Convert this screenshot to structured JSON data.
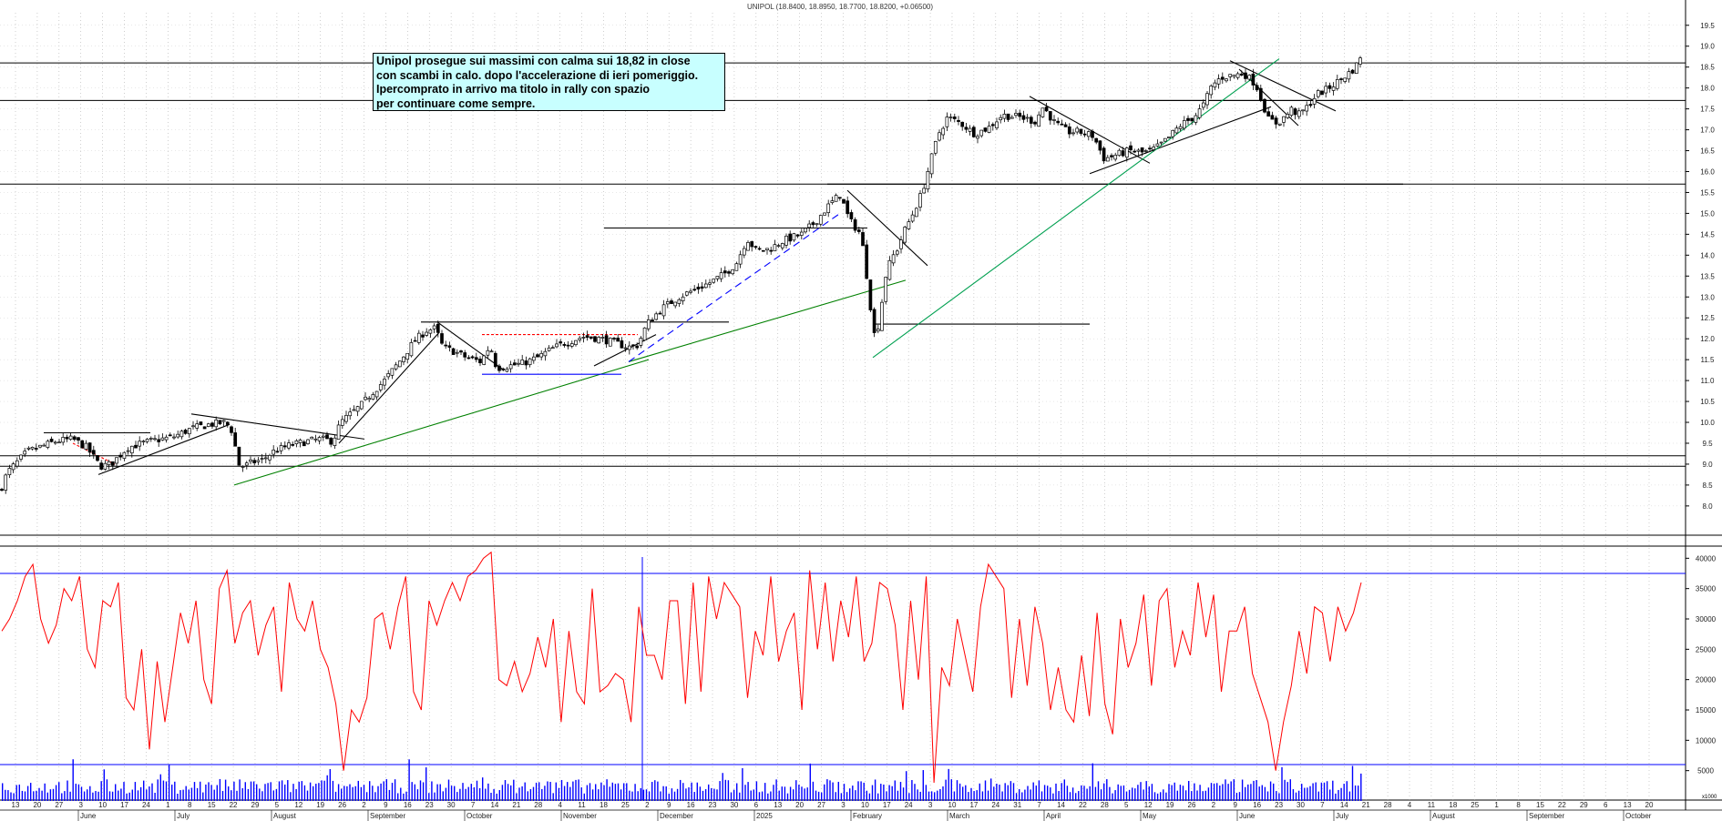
{
  "chart_data": [
    {
      "type": "candlestick",
      "title": "UNIPOL (18.8400, 18.8950, 18.7700, 18.8200, +0.06500)",
      "ylim": [
        7.3,
        19.8
      ],
      "y_ticks": [
        "8.0",
        "8.5",
        "9.0",
        "9.5",
        "10.0",
        "10.5",
        "11.0",
        "11.5",
        "12.0",
        "12.5",
        "13.0",
        "13.5",
        "14.0",
        "14.5",
        "15.0",
        "15.5",
        "16.0",
        "16.5",
        "17.0",
        "17.5",
        "18.0",
        "18.5",
        "19.0",
        "19.5"
      ],
      "price_path": [
        [
          0,
          8.35
        ],
        [
          8,
          8.8
        ],
        [
          30,
          9.3
        ],
        [
          62,
          9.55
        ],
        [
          80,
          9.6
        ],
        [
          95,
          9.4
        ],
        [
          110,
          8.95
        ],
        [
          122,
          9.0
        ],
        [
          140,
          9.4
        ],
        [
          165,
          9.55
        ],
        [
          190,
          9.65
        ],
        [
          210,
          9.85
        ],
        [
          230,
          9.95
        ],
        [
          248,
          10.0
        ],
        [
          256,
          9.75
        ],
        [
          261,
          9.0
        ],
        [
          268,
          8.95
        ],
        [
          278,
          9.05
        ],
        [
          288,
          9.1
        ],
        [
          300,
          9.3
        ],
        [
          318,
          9.45
        ],
        [
          338,
          9.55
        ],
        [
          352,
          9.6
        ],
        [
          365,
          9.55
        ],
        [
          374,
          10.0
        ],
        [
          382,
          10.15
        ],
        [
          396,
          10.4
        ],
        [
          408,
          10.7
        ],
        [
          422,
          11.0
        ],
        [
          440,
          11.5
        ],
        [
          455,
          11.95
        ],
        [
          468,
          12.2
        ],
        [
          478,
          12.25
        ],
        [
          486,
          11.8
        ],
        [
          498,
          11.7
        ],
        [
          512,
          11.55
        ],
        [
          528,
          11.45
        ],
        [
          538,
          11.85
        ],
        [
          545,
          11.3
        ],
        [
          558,
          11.35
        ],
        [
          572,
          11.4
        ],
        [
          590,
          11.55
        ],
        [
          605,
          11.75
        ],
        [
          620,
          11.9
        ],
        [
          640,
          12.05
        ],
        [
          660,
          12.0
        ],
        [
          675,
          11.9
        ],
        [
          690,
          11.8
        ],
        [
          700,
          11.85
        ],
        [
          710,
          12.35
        ],
        [
          725,
          12.7
        ],
        [
          745,
          13.0
        ],
        [
          765,
          13.2
        ],
        [
          780,
          13.35
        ],
        [
          795,
          13.55
        ],
        [
          808,
          13.8
        ],
        [
          820,
          14.4
        ],
        [
          830,
          14.1
        ],
        [
          845,
          14.15
        ],
        [
          860,
          14.35
        ],
        [
          880,
          14.5
        ],
        [
          895,
          14.8
        ],
        [
          910,
          15.2
        ],
        [
          922,
          15.45
        ],
        [
          932,
          14.85
        ],
        [
          945,
          14.5
        ],
        [
          952,
          13.4
        ],
        [
          958,
          12.3
        ],
        [
          961,
          11.95
        ],
        [
          966,
          12.6
        ],
        [
          972,
          13.5
        ],
        [
          978,
          13.9
        ],
        [
          985,
          14.15
        ],
        [
          992,
          14.55
        ],
        [
          1002,
          15.0
        ],
        [
          1012,
          15.5
        ],
        [
          1022,
          16.3
        ],
        [
          1030,
          16.9
        ],
        [
          1040,
          17.3
        ],
        [
          1055,
          17.15
        ],
        [
          1070,
          16.9
        ],
        [
          1085,
          17.05
        ],
        [
          1100,
          17.35
        ],
        [
          1120,
          17.3
        ],
        [
          1136,
          17.2
        ],
        [
          1145,
          17.55
        ],
        [
          1158,
          17.15
        ],
        [
          1172,
          16.95
        ],
        [
          1185,
          16.95
        ],
        [
          1200,
          16.85
        ],
        [
          1212,
          16.3
        ],
        [
          1225,
          16.4
        ],
        [
          1240,
          16.5
        ],
        [
          1255,
          16.45
        ],
        [
          1268,
          16.55
        ],
        [
          1280,
          16.75
        ],
        [
          1295,
          17.1
        ],
        [
          1310,
          17.3
        ],
        [
          1320,
          17.55
        ],
        [
          1330,
          18.05
        ],
        [
          1340,
          18.25
        ],
        [
          1352,
          18.3
        ],
        [
          1365,
          18.35
        ],
        [
          1378,
          18.1
        ],
        [
          1385,
          17.7
        ],
        [
          1392,
          17.25
        ],
        [
          1402,
          17.15
        ],
        [
          1412,
          17.35
        ],
        [
          1418,
          17.5
        ],
        [
          1425,
          17.35
        ],
        [
          1435,
          17.55
        ],
        [
          1445,
          17.85
        ],
        [
          1455,
          17.95
        ],
        [
          1465,
          18.1
        ],
        [
          1480,
          18.35
        ],
        [
          1488,
          18.5
        ],
        [
          1494,
          18.82
        ]
      ],
      "horizontal_lines": [
        18.6,
        17.7,
        15.7,
        9.2,
        8.95
      ],
      "trend_lines": [
        {
          "color": "#000000",
          "style": "solid",
          "points": [
            [
              48,
              9.75
            ],
            [
              165,
              9.75
            ]
          ]
        },
        {
          "color": "#000000",
          "style": "solid",
          "points": [
            [
              108,
              8.75
            ],
            [
              252,
              9.95
            ]
          ]
        },
        {
          "color": "#000000",
          "style": "solid",
          "points": [
            [
              210,
              10.2
            ],
            [
              400,
              9.6
            ]
          ]
        },
        {
          "color": "#000000",
          "style": "solid",
          "points": [
            [
              372,
              9.5
            ],
            [
              482,
              12.15
            ]
          ]
        },
        {
          "color": "#000000",
          "style": "solid",
          "points": [
            [
              462,
              12.4
            ],
            [
              800,
              12.4
            ]
          ]
        },
        {
          "color": "#000000",
          "style": "solid",
          "points": [
            [
              480,
              12.4
            ],
            [
              553,
              11.25
            ]
          ]
        },
        {
          "color": "#000000",
          "style": "solid",
          "points": [
            [
              652,
              11.35
            ],
            [
              720,
              12.1
            ]
          ]
        },
        {
          "color": "#000000",
          "style": "solid",
          "points": [
            [
              663,
              14.65
            ],
            [
              952,
              14.65
            ]
          ]
        },
        {
          "color": "#000000",
          "style": "solid",
          "points": [
            [
              908,
              15.7
            ],
            [
              1540,
              15.7
            ]
          ]
        },
        {
          "color": "#000000",
          "style": "solid",
          "points": [
            [
              930,
              15.55
            ],
            [
              1018,
              13.75
            ]
          ]
        },
        {
          "color": "#000000",
          "style": "solid",
          "points": [
            [
              960,
              12.35
            ],
            [
              1196,
              12.35
            ]
          ]
        },
        {
          "color": "#000000",
          "style": "solid",
          "points": [
            [
              1018,
              17.7
            ],
            [
              1540,
              17.7
            ]
          ]
        },
        {
          "color": "#000000",
          "style": "solid",
          "points": [
            [
              1130,
              17.8
            ],
            [
              1262,
              16.2
            ]
          ]
        },
        {
          "color": "#000000",
          "style": "solid",
          "points": [
            [
              1196,
              15.95
            ],
            [
              1395,
              17.55
            ]
          ]
        },
        {
          "color": "#000000",
          "style": "solid",
          "points": [
            [
              1350,
              18.65
            ],
            [
              1466,
              17.45
            ]
          ]
        },
        {
          "color": "#000000",
          "style": "solid",
          "points": [
            [
              1360,
              18.45
            ],
            [
              1425,
              17.1
            ]
          ]
        },
        {
          "color": "#008000",
          "style": "solid",
          "points": [
            [
              257,
              8.5
            ],
            [
              712,
              11.5
            ]
          ]
        },
        {
          "color": "#008000",
          "style": "solid",
          "points": [
            [
              690,
              11.45
            ],
            [
              994,
              13.4
            ]
          ]
        },
        {
          "color": "#00a050",
          "style": "solid",
          "points": [
            [
              958,
              11.55
            ],
            [
              1404,
              18.7
            ]
          ]
        },
        {
          "color": "#0000ff",
          "style": "dashed",
          "points": [
            [
              690,
              11.45
            ],
            [
              922,
              15.0
            ]
          ]
        },
        {
          "color": "#0000ff",
          "style": "solid",
          "points": [
            [
              529,
              11.15
            ],
            [
              682,
              11.15
            ]
          ]
        },
        {
          "color": "#ff0000",
          "style": "dashed",
          "points": [
            [
              529,
              12.1
            ],
            [
              700,
              12.1
            ]
          ]
        },
        {
          "color": "#ff0000",
          "style": "dashed",
          "points": [
            [
              80,
              9.5
            ],
            [
              126,
              9.0
            ]
          ]
        }
      ]
    },
    {
      "type": "line",
      "ylim": [
        0,
        42000
      ],
      "y_ticks": [
        "5000",
        "10000",
        "15000",
        "20000",
        "25000",
        "30000",
        "35000",
        "40000"
      ],
      "horizontal_lines": [
        37500,
        6000
      ],
      "values": [
        28000,
        30000,
        33000,
        37000,
        39000,
        30000,
        26000,
        29000,
        35000,
        33000,
        37000,
        25000,
        22000,
        33000,
        32000,
        36000,
        17000,
        15000,
        25000,
        8500,
        23000,
        13000,
        22000,
        31000,
        26000,
        33000,
        20000,
        16000,
        35000,
        38000,
        26000,
        31000,
        33000,
        24000,
        29000,
        32000,
        18000,
        36000,
        30000,
        28000,
        33000,
        25000,
        22000,
        16000,
        5000,
        15000,
        13000,
        17000,
        30000,
        31000,
        25000,
        32000,
        37000,
        18000,
        15000,
        33000,
        29000,
        33000,
        36000,
        33000,
        37000,
        38000,
        40000,
        41000,
        20000,
        19000,
        23000,
        18000,
        21000,
        27000,
        22000,
        30000,
        13000,
        28000,
        18000,
        16000,
        35000,
        18000,
        19000,
        21000,
        20000,
        13000,
        32000,
        24000,
        24000,
        20000,
        33000,
        33000,
        16000,
        36000,
        18000,
        37000,
        30000,
        36000,
        34000,
        32000,
        17000,
        28000,
        24000,
        37000,
        23000,
        28000,
        31000,
        15000,
        38000,
        25000,
        36000,
        23000,
        33000,
        27000,
        37000,
        23000,
        26000,
        36000,
        35000,
        29000,
        15000,
        33000,
        20000,
        37000,
        3000,
        22000,
        19000,
        30000,
        24000,
        18000,
        32000,
        39000,
        37000,
        35000,
        17000,
        30000,
        19000,
        32000,
        26000,
        15000,
        22000,
        15000,
        13000,
        24000,
        14000,
        31000,
        16000,
        11000,
        30000,
        22000,
        26000,
        34000,
        19000,
        33000,
        35000,
        22000,
        28000,
        24000,
        36000,
        27000,
        34000,
        18000,
        28000,
        28000,
        32000,
        21000,
        17000,
        13000,
        5000,
        13000,
        19000,
        28000,
        21000,
        32000,
        31000,
        23000,
        32000,
        28000,
        31000,
        36000
      ]
    },
    {
      "type": "bar",
      "series_name": "volume",
      "ylim": [
        0,
        42000
      ],
      "max_bar": 7500,
      "seed": 7
    }
  ],
  "x_axis": {
    "ticks_row1": [
      "13",
      "20",
      "27",
      "3",
      "10",
      "17",
      "24",
      "1",
      "8",
      "15",
      "22",
      "29",
      "5",
      "12",
      "19",
      "26",
      "2",
      "9",
      "16",
      "23",
      "30",
      "7",
      "14",
      "21",
      "28",
      "4",
      "11",
      "18",
      "25",
      "2",
      "9",
      "16",
      "23",
      "30",
      "6",
      "13",
      "20",
      "27",
      "3",
      "10",
      "17",
      "24",
      "3",
      "10",
      "17",
      "24",
      "31",
      "7",
      "14",
      "22",
      "28",
      "5",
      "12",
      "19",
      "26",
      "2",
      "9",
      "16",
      "23",
      "30",
      "7",
      "14",
      "21",
      "28",
      "4",
      "11",
      "18",
      "25",
      "1",
      "8",
      "15",
      "22",
      "29",
      "6",
      "13",
      "20"
    ],
    "months": [
      "June",
      "July",
      "August",
      "September",
      "October",
      "November",
      "December",
      "2025",
      "February",
      "March",
      "April",
      "May",
      "June",
      "July",
      "August",
      "September",
      "October"
    ]
  },
  "volume_corner_label": "x1000"
}
